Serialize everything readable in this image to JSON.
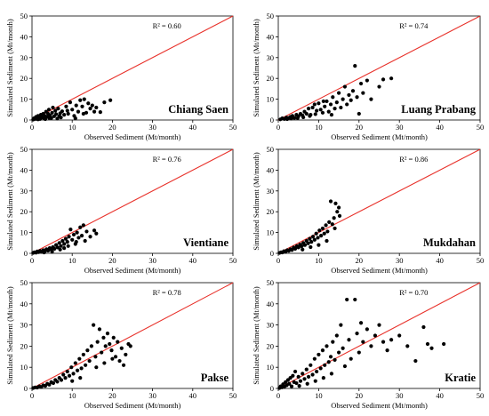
{
  "chart_data": [
    {
      "type": "scatter",
      "station": "Chiang Saen",
      "r2": "R² = 0.60",
      "xlabel": "Observed Sediment (Mt/month)",
      "ylabel": "Simulated Sediment (Mt/month)",
      "xlim": [
        0,
        50
      ],
      "ylim": [
        0,
        50
      ],
      "xticks": [
        "0",
        "10",
        "20",
        "30",
        "40",
        "50"
      ],
      "yticks": [
        "0",
        "10",
        "20",
        "30",
        "40",
        "50"
      ],
      "reference_line": "1:1",
      "points": [
        [
          0.3,
          0.2
        ],
        [
          0.5,
          0.8
        ],
        [
          0.8,
          0.5
        ],
        [
          1.0,
          1.5
        ],
        [
          1.2,
          0.6
        ],
        [
          1.5,
          2.0
        ],
        [
          1.8,
          1.0
        ],
        [
          2.0,
          0.5
        ],
        [
          2.2,
          2.5
        ],
        [
          2.5,
          1.2
        ],
        [
          2.8,
          3.0
        ],
        [
          3.0,
          0.8
        ],
        [
          3.2,
          2.0
        ],
        [
          3.5,
          4.0
        ],
        [
          3.8,
          1.5
        ],
        [
          4.0,
          3.0
        ],
        [
          4.2,
          5.0
        ],
        [
          4.5,
          2.2
        ],
        [
          4.8,
          0.9
        ],
        [
          5.0,
          3.5
        ],
        [
          5.2,
          6.0
        ],
        [
          5.5,
          1.8
        ],
        [
          5.8,
          4.5
        ],
        [
          6.0,
          2.8
        ],
        [
          6.3,
          0.7
        ],
        [
          6.5,
          5.5
        ],
        [
          7.0,
          3.2
        ],
        [
          7.2,
          1.2
        ],
        [
          7.5,
          4.2
        ],
        [
          8.0,
          2.5
        ],
        [
          8.5,
          6.5
        ],
        [
          9.0,
          3.0
        ],
        [
          9.5,
          8.5
        ],
        [
          10.0,
          5.0
        ],
        [
          10.5,
          2.0
        ],
        [
          11.0,
          7.0
        ],
        [
          11.5,
          4.0
        ],
        [
          12.0,
          9.5
        ],
        [
          12.5,
          6.5
        ],
        [
          13.0,
          10.0
        ],
        [
          13.5,
          3.5
        ],
        [
          14.0,
          8.0
        ],
        [
          14.5,
          5.5
        ],
        [
          15.0,
          7.0
        ],
        [
          15.5,
          4.0
        ],
        [
          16.0,
          6.0
        ],
        [
          17.0,
          3.8
        ],
        [
          18.0,
          8.5
        ],
        [
          19.5,
          9.5
        ],
        [
          1.5,
          0.3
        ],
        [
          2.3,
          1.8
        ],
        [
          3.3,
          0.4
        ],
        [
          4.3,
          1.0
        ],
        [
          6.8,
          1.9
        ],
        [
          8.8,
          4.5
        ],
        [
          10.8,
          0.8
        ],
        [
          12.8,
          3.0
        ]
      ]
    },
    {
      "type": "scatter",
      "station": "Luang Prabang",
      "r2": "R² = 0.74",
      "xlabel": "Observed Sediment (Mt/month)",
      "ylabel": "Simulated Sediment (Mt/month)",
      "xlim": [
        0,
        50
      ],
      "ylim": [
        0,
        50
      ],
      "xticks": [
        "0",
        "10",
        "20",
        "30",
        "40",
        "50"
      ],
      "yticks": [
        "0",
        "10",
        "20",
        "30",
        "40",
        "50"
      ],
      "reference_line": "1:1",
      "points": [
        [
          0.5,
          0.3
        ],
        [
          1.0,
          0.8
        ],
        [
          1.5,
          0.5
        ],
        [
          2.0,
          1.2
        ],
        [
          2.5,
          0.9
        ],
        [
          3.0,
          1.5
        ],
        [
          3.5,
          2.0
        ],
        [
          4.0,
          1.0
        ],
        [
          4.5,
          2.5
        ],
        [
          5.0,
          1.8
        ],
        [
          5.5,
          3.0
        ],
        [
          6.0,
          2.2
        ],
        [
          6.5,
          4.0
        ],
        [
          7.0,
          3.0
        ],
        [
          7.5,
          5.5
        ],
        [
          8.0,
          2.5
        ],
        [
          8.5,
          6.0
        ],
        [
          9.0,
          7.5
        ],
        [
          9.5,
          4.5
        ],
        [
          10.0,
          8.0
        ],
        [
          10.5,
          5.0
        ],
        [
          11.0,
          3.5
        ],
        [
          11.5,
          6.5
        ],
        [
          12.0,
          9.0
        ],
        [
          12.5,
          4.0
        ],
        [
          13.0,
          7.5
        ],
        [
          13.5,
          11.0
        ],
        [
          14.0,
          5.5
        ],
        [
          14.5,
          8.5
        ],
        [
          15.0,
          13.0
        ],
        [
          15.5,
          6.0
        ],
        [
          16.0,
          10.0
        ],
        [
          16.5,
          16.0
        ],
        [
          17.0,
          7.5
        ],
        [
          17.5,
          12.0
        ],
        [
          18.0,
          9.5
        ],
        [
          18.5,
          14.0
        ],
        [
          19.0,
          26.0
        ],
        [
          19.5,
          11.0
        ],
        [
          20.0,
          3.0
        ],
        [
          20.5,
          17.5
        ],
        [
          21.0,
          13.0
        ],
        [
          22.0,
          19.0
        ],
        [
          23.0,
          10.0
        ],
        [
          25.0,
          16.0
        ],
        [
          26.0,
          19.5
        ],
        [
          28.0,
          20.0
        ],
        [
          2.2,
          0.4
        ],
        [
          3.2,
          0.7
        ],
        [
          4.8,
          0.9
        ],
        [
          6.2,
          1.3
        ],
        [
          7.8,
          1.9
        ],
        [
          9.2,
          2.8
        ],
        [
          11.2,
          9.0
        ],
        [
          13.2,
          2.5
        ]
      ]
    },
    {
      "type": "scatter",
      "station": "Vientiane",
      "r2": "R² = 0.76",
      "xlabel": "Observed Sediment (Mt/month)",
      "ylabel": "Simulated Sediment (Mt/month)",
      "xlim": [
        0,
        50
      ],
      "ylim": [
        0,
        50
      ],
      "xticks": [
        "0",
        "10",
        "20",
        "30",
        "40",
        "50"
      ],
      "yticks": [
        "0",
        "10",
        "20",
        "30",
        "40",
        "50"
      ],
      "reference_line": "1:1",
      "points": [
        [
          0.3,
          0.2
        ],
        [
          0.6,
          0.5
        ],
        [
          1.0,
          0.3
        ],
        [
          1.3,
          0.9
        ],
        [
          1.6,
          0.6
        ],
        [
          2.0,
          1.2
        ],
        [
          2.4,
          0.8
        ],
        [
          2.8,
          1.5
        ],
        [
          3.2,
          1.0
        ],
        [
          3.6,
          2.0
        ],
        [
          4.0,
          1.3
        ],
        [
          4.4,
          2.5
        ],
        [
          4.8,
          1.8
        ],
        [
          5.2,
          3.0
        ],
        [
          5.6,
          2.2
        ],
        [
          6.0,
          4.0
        ],
        [
          6.4,
          2.8
        ],
        [
          6.8,
          5.0
        ],
        [
          7.2,
          3.5
        ],
        [
          7.6,
          6.0
        ],
        [
          8.0,
          4.5
        ],
        [
          8.4,
          7.0
        ],
        [
          8.8,
          5.5
        ],
        [
          9.2,
          8.0
        ],
        [
          9.6,
          11.5
        ],
        [
          10.0,
          6.5
        ],
        [
          10.4,
          9.0
        ],
        [
          10.8,
          4.5
        ],
        [
          11.2,
          10.0
        ],
        [
          11.6,
          7.5
        ],
        [
          12.0,
          12.5
        ],
        [
          12.4,
          8.5
        ],
        [
          12.8,
          13.5
        ],
        [
          13.2,
          6.0
        ],
        [
          13.6,
          10.5
        ],
        [
          14.5,
          8.0
        ],
        [
          15.5,
          11.0
        ],
        [
          16.0,
          9.5
        ],
        [
          5.0,
          0.8
        ],
        [
          7.0,
          1.8
        ],
        [
          9.0,
          3.5
        ],
        [
          11.0,
          5.5
        ],
        [
          3.0,
          0.4
        ],
        [
          8.0,
          2.5
        ]
      ]
    },
    {
      "type": "scatter",
      "station": "Mukdahan",
      "r2": "R² = 0.86",
      "xlabel": "Observed Sediment (Mt/month)",
      "ylabel": "Simulated Sediment (Mt/month)",
      "xlim": [
        0,
        50
      ],
      "ylim": [
        0,
        50
      ],
      "xticks": [
        "0",
        "10",
        "20",
        "30",
        "40",
        "50"
      ],
      "yticks": [
        "0",
        "10",
        "20",
        "30",
        "40",
        "50"
      ],
      "reference_line": "1:1",
      "points": [
        [
          0.3,
          0.2
        ],
        [
          0.7,
          0.5
        ],
        [
          1.0,
          0.4
        ],
        [
          1.4,
          1.0
        ],
        [
          1.8,
          0.8
        ],
        [
          2.2,
          1.5
        ],
        [
          2.6,
          1.2
        ],
        [
          3.0,
          2.0
        ],
        [
          3.4,
          1.6
        ],
        [
          3.8,
          2.8
        ],
        [
          4.2,
          2.2
        ],
        [
          4.6,
          3.5
        ],
        [
          5.0,
          2.8
        ],
        [
          5.4,
          4.2
        ],
        [
          5.8,
          3.4
        ],
        [
          6.2,
          5.0
        ],
        [
          6.6,
          4.0
        ],
        [
          7.0,
          6.0
        ],
        [
          7.4,
          4.8
        ],
        [
          7.8,
          7.0
        ],
        [
          8.2,
          5.5
        ],
        [
          8.6,
          8.0
        ],
        [
          9.0,
          6.5
        ],
        [
          9.4,
          9.5
        ],
        [
          9.8,
          7.5
        ],
        [
          10.2,
          11.0
        ],
        [
          10.6,
          8.5
        ],
        [
          11.0,
          12.0
        ],
        [
          11.4,
          9.5
        ],
        [
          11.8,
          13.5
        ],
        [
          12.2,
          10.5
        ],
        [
          12.6,
          15.0
        ],
        [
          13.0,
          25.0
        ],
        [
          13.4,
          14.0
        ],
        [
          13.8,
          17.0
        ],
        [
          14.2,
          24.0
        ],
        [
          14.6,
          20.0
        ],
        [
          15.0,
          22.0
        ],
        [
          15.2,
          18.0
        ],
        [
          12.0,
          6.0
        ],
        [
          10.0,
          4.0
        ],
        [
          8.0,
          3.0
        ],
        [
          6.0,
          1.8
        ],
        [
          14.0,
          12.0
        ]
      ]
    },
    {
      "type": "scatter",
      "station": "Pakse",
      "r2": "R² = 0.78",
      "xlabel": "Observed Sediment (Mt/month)",
      "ylabel": "Simulated Sediment (Mt/month)",
      "xlim": [
        0,
        50
      ],
      "ylim": [
        0,
        50
      ],
      "xticks": [
        "0",
        "10",
        "20",
        "30",
        "40",
        "50"
      ],
      "yticks": [
        "0",
        "10",
        "20",
        "30",
        "40",
        "50"
      ],
      "reference_line": "1:1",
      "points": [
        [
          0.3,
          0.2
        ],
        [
          0.8,
          0.5
        ],
        [
          1.3,
          0.4
        ],
        [
          1.8,
          1.0
        ],
        [
          2.3,
          0.7
        ],
        [
          2.8,
          1.5
        ],
        [
          3.3,
          1.2
        ],
        [
          3.8,
          2.2
        ],
        [
          4.3,
          1.8
        ],
        [
          4.8,
          3.0
        ],
        [
          5.3,
          2.5
        ],
        [
          5.8,
          4.0
        ],
        [
          6.3,
          3.2
        ],
        [
          6.8,
          5.0
        ],
        [
          7.3,
          4.0
        ],
        [
          7.8,
          6.5
        ],
        [
          8.3,
          5.0
        ],
        [
          8.8,
          8.0
        ],
        [
          9.3,
          6.0
        ],
        [
          9.8,
          10.0
        ],
        [
          10.3,
          7.0
        ],
        [
          10.8,
          12.0
        ],
        [
          11.3,
          8.5
        ],
        [
          11.8,
          14.0
        ],
        [
          12.3,
          9.5
        ],
        [
          12.8,
          16.0
        ],
        [
          13.3,
          11.0
        ],
        [
          13.8,
          18.0
        ],
        [
          14.3,
          13.0
        ],
        [
          14.8,
          20.0
        ],
        [
          15.3,
          30.0
        ],
        [
          15.8,
          15.0
        ],
        [
          16.3,
          22.0
        ],
        [
          16.8,
          28.0
        ],
        [
          17.3,
          17.0
        ],
        [
          17.8,
          24.0
        ],
        [
          18.3,
          20.0
        ],
        [
          18.8,
          26.0
        ],
        [
          19.3,
          21.0
        ],
        [
          19.8,
          18.0
        ],
        [
          20.3,
          24.0
        ],
        [
          20.8,
          15.0
        ],
        [
          21.3,
          22.0
        ],
        [
          21.8,
          13.0
        ],
        [
          22.3,
          19.0
        ],
        [
          22.8,
          11.0
        ],
        [
          23.3,
          16.0
        ],
        [
          24.0,
          21.0
        ],
        [
          24.5,
          20.0
        ],
        [
          12.0,
          5.0
        ],
        [
          10.0,
          3.5
        ],
        [
          16.0,
          10.0
        ],
        [
          18.0,
          12.0
        ],
        [
          20.0,
          14.0
        ]
      ]
    },
    {
      "type": "scatter",
      "station": "Kratie",
      "r2": "R² = 0.70",
      "xlabel": "Observed Sediment (Mt/month)",
      "ylabel": "Simulated Sediment (Mt/month)",
      "xlim": [
        0,
        50
      ],
      "ylim": [
        0,
        50
      ],
      "xticks": [
        "0",
        "10",
        "20",
        "30",
        "40",
        "50"
      ],
      "yticks": [
        "0",
        "10",
        "20",
        "30",
        "40",
        "50"
      ],
      "reference_line": "1:1",
      "points": [
        [
          0.3,
          0.2
        ],
        [
          0.6,
          1.0
        ],
        [
          0.9,
          0.5
        ],
        [
          1.2,
          2.0
        ],
        [
          1.5,
          0.8
        ],
        [
          1.8,
          3.0
        ],
        [
          2.1,
          1.5
        ],
        [
          2.4,
          4.0
        ],
        [
          2.7,
          2.2
        ],
        [
          3.0,
          5.0
        ],
        [
          3.3,
          1.0
        ],
        [
          3.6,
          6.0
        ],
        [
          3.9,
          3.0
        ],
        [
          4.2,
          8.0
        ],
        [
          4.5,
          2.5
        ],
        [
          5.0,
          5.5
        ],
        [
          5.5,
          3.5
        ],
        [
          6.0,
          7.0
        ],
        [
          6.5,
          4.5
        ],
        [
          7.0,
          9.0
        ],
        [
          7.5,
          5.5
        ],
        [
          8.0,
          11.0
        ],
        [
          8.5,
          6.5
        ],
        [
          9.0,
          14.0
        ],
        [
          9.5,
          8.0
        ],
        [
          10.0,
          16.0
        ],
        [
          10.5,
          9.5
        ],
        [
          11.0,
          18.0
        ],
        [
          11.5,
          11.0
        ],
        [
          12.0,
          20.0
        ],
        [
          12.5,
          12.5
        ],
        [
          13.0,
          15.0
        ],
        [
          13.5,
          22.0
        ],
        [
          14.0,
          13.5
        ],
        [
          14.5,
          25.0
        ],
        [
          15.0,
          17.0
        ],
        [
          15.5,
          30.0
        ],
        [
          16.0,
          19.0
        ],
        [
          16.5,
          10.5
        ],
        [
          17.0,
          42.0
        ],
        [
          17.5,
          23.0
        ],
        [
          18.0,
          14.0
        ],
        [
          19.0,
          42.0
        ],
        [
          19.5,
          26.0
        ],
        [
          20.0,
          17.0
        ],
        [
          20.5,
          31.0
        ],
        [
          21.0,
          22.0
        ],
        [
          22.0,
          28.0
        ],
        [
          23.0,
          20.0
        ],
        [
          24.0,
          25.0
        ],
        [
          25.0,
          30.0
        ],
        [
          26.0,
          22.0
        ],
        [
          27.0,
          18.0
        ],
        [
          28.0,
          23.0
        ],
        [
          30.0,
          25.0
        ],
        [
          32.0,
          20.0
        ],
        [
          34.0,
          13.0
        ],
        [
          36.0,
          29.0
        ],
        [
          37.0,
          21.0
        ],
        [
          38.0,
          19.0
        ],
        [
          41.0,
          21.0
        ],
        [
          5.2,
          1.2
        ],
        [
          7.2,
          2.2
        ],
        [
          9.2,
          3.5
        ],
        [
          11.2,
          5.0
        ],
        [
          13.2,
          7.0
        ]
      ]
    }
  ]
}
